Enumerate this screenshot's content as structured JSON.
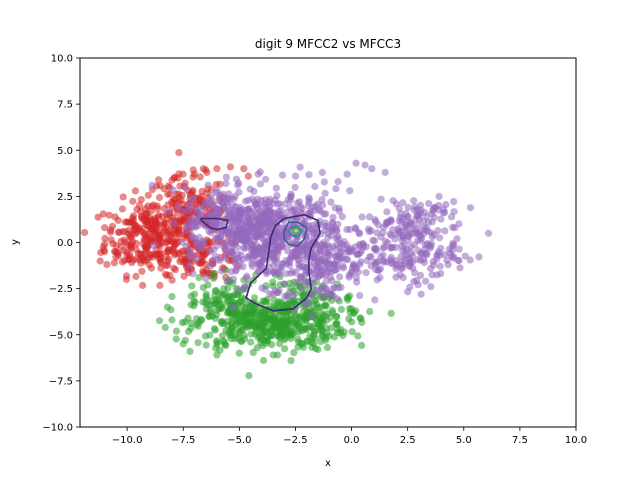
{
  "chart_data": {
    "type": "scatter",
    "title": "digit 9 MFCC2 vs MFCC3",
    "xlabel": "x",
    "ylabel": "y",
    "xlim": [
      -12.1,
      10
    ],
    "ylim": [
      -10,
      10
    ],
    "x_ticks": [
      "−10.0",
      "−7.5",
      "−5.0",
      "−2.5",
      "0.0",
      "2.5",
      "5.0",
      "7.5",
      "10.0"
    ],
    "x_tick_values": [
      -10,
      -7.5,
      -5,
      -2.5,
      0,
      2.5,
      5,
      7.5,
      10
    ],
    "y_ticks": [
      "−10.0",
      "−7.5",
      "−5.0",
      "−2.5",
      "0.0",
      "2.5",
      "5.0",
      "7.5",
      "10.0"
    ],
    "y_tick_values": [
      -10,
      -7.5,
      -5,
      -2.5,
      0,
      2.5,
      5,
      7.5,
      10
    ],
    "grid": false,
    "legend": "none",
    "series": [
      {
        "color": "#d62728",
        "clusters": [
          {
            "cx": -9.0,
            "cy": 0.3,
            "sx": 1.0,
            "sy": 1.0,
            "n": 260
          },
          {
            "cx": -7.3,
            "cy": 1.6,
            "sx": 0.9,
            "sy": 1.0,
            "n": 160
          },
          {
            "cx": -6.5,
            "cy": -0.8,
            "sx": 0.9,
            "sy": 0.6,
            "n": 80
          }
        ],
        "points": [
          [
            -11.0,
            -0.5
          ],
          [
            -11.2,
            -1.0
          ],
          [
            -10.5,
            -0.8
          ],
          [
            -8.6,
            3.4
          ],
          [
            -7.9,
            3.5
          ],
          [
            -7.0,
            3.7
          ],
          [
            -6.6,
            4.0
          ],
          [
            -6.0,
            4.0
          ],
          [
            -5.4,
            4.1
          ],
          [
            -4.8,
            4.0
          ],
          [
            -4.6,
            3.6
          ],
          [
            -8.5,
            -0.8
          ],
          [
            -9.5,
            -0.6
          ],
          [
            -7.6,
            -0.9
          ],
          [
            -6.8,
            -1.1
          ],
          [
            -6.2,
            -1.0
          ],
          [
            -10.0,
            -0.7
          ],
          [
            -11.0,
            0.8
          ],
          [
            -10.4,
            1.2
          ]
        ]
      },
      {
        "color": "#2ca02c",
        "clusters": [
          {
            "cx": -3.6,
            "cy": -4.4,
            "sx": 1.7,
            "sy": 0.7,
            "n": 420
          },
          {
            "cx": -5.6,
            "cy": -3.2,
            "sx": 0.8,
            "sy": 0.7,
            "n": 90
          },
          {
            "cx": -1.8,
            "cy": -3.1,
            "sx": 1.0,
            "sy": 0.6,
            "n": 80
          }
        ],
        "points": [
          [
            -8.2,
            -3.5
          ],
          [
            -8.0,
            -4.2
          ],
          [
            -7.8,
            -4.8
          ],
          [
            -7.5,
            -5.5
          ],
          [
            -7.2,
            -5.9
          ],
          [
            -6.0,
            -6.1
          ],
          [
            -5.0,
            -6.0
          ],
          [
            -4.2,
            -5.7
          ],
          [
            -3.3,
            -6.1
          ],
          [
            -2.7,
            -6.4
          ],
          [
            -1.5,
            -5.8
          ],
          [
            -0.5,
            -4.9
          ],
          [
            0.0,
            -4.3
          ],
          [
            0.1,
            -3.8
          ],
          [
            -0.2,
            -3.0
          ],
          [
            -5.6,
            -1.5
          ],
          [
            -6.4,
            -2.3
          ],
          [
            -6.8,
            -1.9
          ],
          [
            -7.0,
            -2.8
          ],
          [
            -8.3,
            -4.6
          ]
        ]
      },
      {
        "color": "#9467bd",
        "clusters": [
          {
            "cx": -3.5,
            "cy": 0.3,
            "sx": 1.4,
            "sy": 1.3,
            "n": 520
          },
          {
            "cx": -5.5,
            "cy": 1.2,
            "sx": 1.0,
            "sy": 0.9,
            "n": 200
          },
          {
            "cx": -1.2,
            "cy": -1.0,
            "sx": 0.9,
            "sy": 1.1,
            "n": 160
          },
          {
            "cx": 2.3,
            "cy": -0.4,
            "sx": 1.2,
            "sy": 0.9,
            "n": 180
          },
          {
            "cx": 2.8,
            "cy": 1.3,
            "sx": 1.0,
            "sy": 0.8,
            "n": 70
          }
        ],
        "points": [
          [
            0.2,
            4.3
          ],
          [
            0.6,
            4.2
          ],
          [
            0.9,
            4.0
          ],
          [
            1.5,
            3.8
          ],
          [
            -0.6,
            3.3
          ],
          [
            -0.2,
            3.7
          ],
          [
            -1.3,
            3.8
          ],
          [
            -2.5,
            3.6
          ],
          [
            3.9,
            2.5
          ],
          [
            4.1,
            1.8
          ],
          [
            4.6,
            0.8
          ],
          [
            4.7,
            0.2
          ],
          [
            4.5,
            -0.4
          ],
          [
            4.3,
            -1.2
          ],
          [
            3.3,
            -2.1
          ],
          [
            2.3,
            -1.9
          ],
          [
            1.2,
            -1.5
          ],
          [
            0.3,
            -1.6
          ],
          [
            -0.8,
            -2.9
          ],
          [
            -1.7,
            -2.2
          ],
          [
            -2.6,
            -2.9
          ],
          [
            -3.5,
            -1.6
          ],
          [
            -4.5,
            -0.7
          ],
          [
            -5.6,
            3.2
          ],
          [
            -6.3,
            2.3
          ],
          [
            -6.8,
            1.3
          ],
          [
            -7.1,
            0.8
          ],
          [
            -6.3,
            -0.5
          ],
          [
            -5.3,
            -0.6
          ],
          [
            3.1,
            -2.8
          ],
          [
            1.8,
            -1.1
          ],
          [
            3.6,
            0.3
          ]
        ]
      }
    ],
    "contour": {
      "levels": [
        {
          "color": "#3b2a6e",
          "path": [
            [
              -3.0,
              1.3
            ],
            [
              -2.1,
              1.5
            ],
            [
              -1.5,
              1.2
            ],
            [
              -1.4,
              0.5
            ],
            [
              -1.8,
              -0.3
            ],
            [
              -1.9,
              -0.9
            ],
            [
              -1.9,
              -1.6
            ],
            [
              -1.8,
              -2.5
            ],
            [
              -2.0,
              -3.0
            ],
            [
              -2.6,
              -3.6
            ],
            [
              -3.5,
              -3.7
            ],
            [
              -4.3,
              -3.3
            ],
            [
              -4.7,
              -3.0
            ],
            [
              -4.5,
              -2.2
            ],
            [
              -3.8,
              -1.4
            ],
            [
              -3.7,
              -0.6
            ],
            [
              -3.6,
              0.3
            ],
            [
              -3.4,
              0.9
            ],
            [
              -3.0,
              1.3
            ]
          ]
        },
        {
          "color": "#3b2a6e",
          "path": [
            [
              -6.7,
              1.3
            ],
            [
              -6.0,
              1.3
            ],
            [
              -5.5,
              1.2
            ],
            [
              -5.6,
              0.8
            ],
            [
              -6.0,
              0.7
            ],
            [
              -6.3,
              0.8
            ],
            [
              -6.7,
              1.2
            ],
            [
              -6.7,
              1.3
            ]
          ]
        },
        {
          "color": "#3e5a91",
          "path": [
            [
              -2.8,
              1.1
            ],
            [
              -2.4,
              1.1
            ],
            [
              -2.0,
              0.8
            ],
            [
              -2.1,
              0.2
            ],
            [
              -2.4,
              -0.2
            ],
            [
              -2.8,
              -0.1
            ],
            [
              -3.0,
              0.2
            ],
            [
              -3.0,
              0.6
            ],
            [
              -2.8,
              1.1
            ]
          ]
        },
        {
          "color": "#2a8e8c",
          "path": [
            [
              -2.7,
              0.8
            ],
            [
              -2.4,
              0.9
            ],
            [
              -2.2,
              0.6
            ],
            [
              -2.4,
              0.3
            ],
            [
              -2.7,
              0.4
            ],
            [
              -2.8,
              0.6
            ],
            [
              -2.7,
              0.8
            ]
          ]
        },
        {
          "color": "#35b779",
          "path": [
            [
              -2.6,
              0.7
            ],
            [
              -2.45,
              0.75
            ],
            [
              -2.35,
              0.6
            ],
            [
              -2.45,
              0.5
            ],
            [
              -2.6,
              0.55
            ],
            [
              -2.6,
              0.7
            ]
          ]
        },
        {
          "color": "#c8e020",
          "path": [
            [
              -2.52,
              0.66
            ],
            [
              -2.45,
              0.68
            ],
            [
              -2.42,
              0.62
            ],
            [
              -2.48,
              0.58
            ],
            [
              -2.52,
              0.62
            ],
            [
              -2.52,
              0.66
            ]
          ]
        }
      ]
    }
  }
}
